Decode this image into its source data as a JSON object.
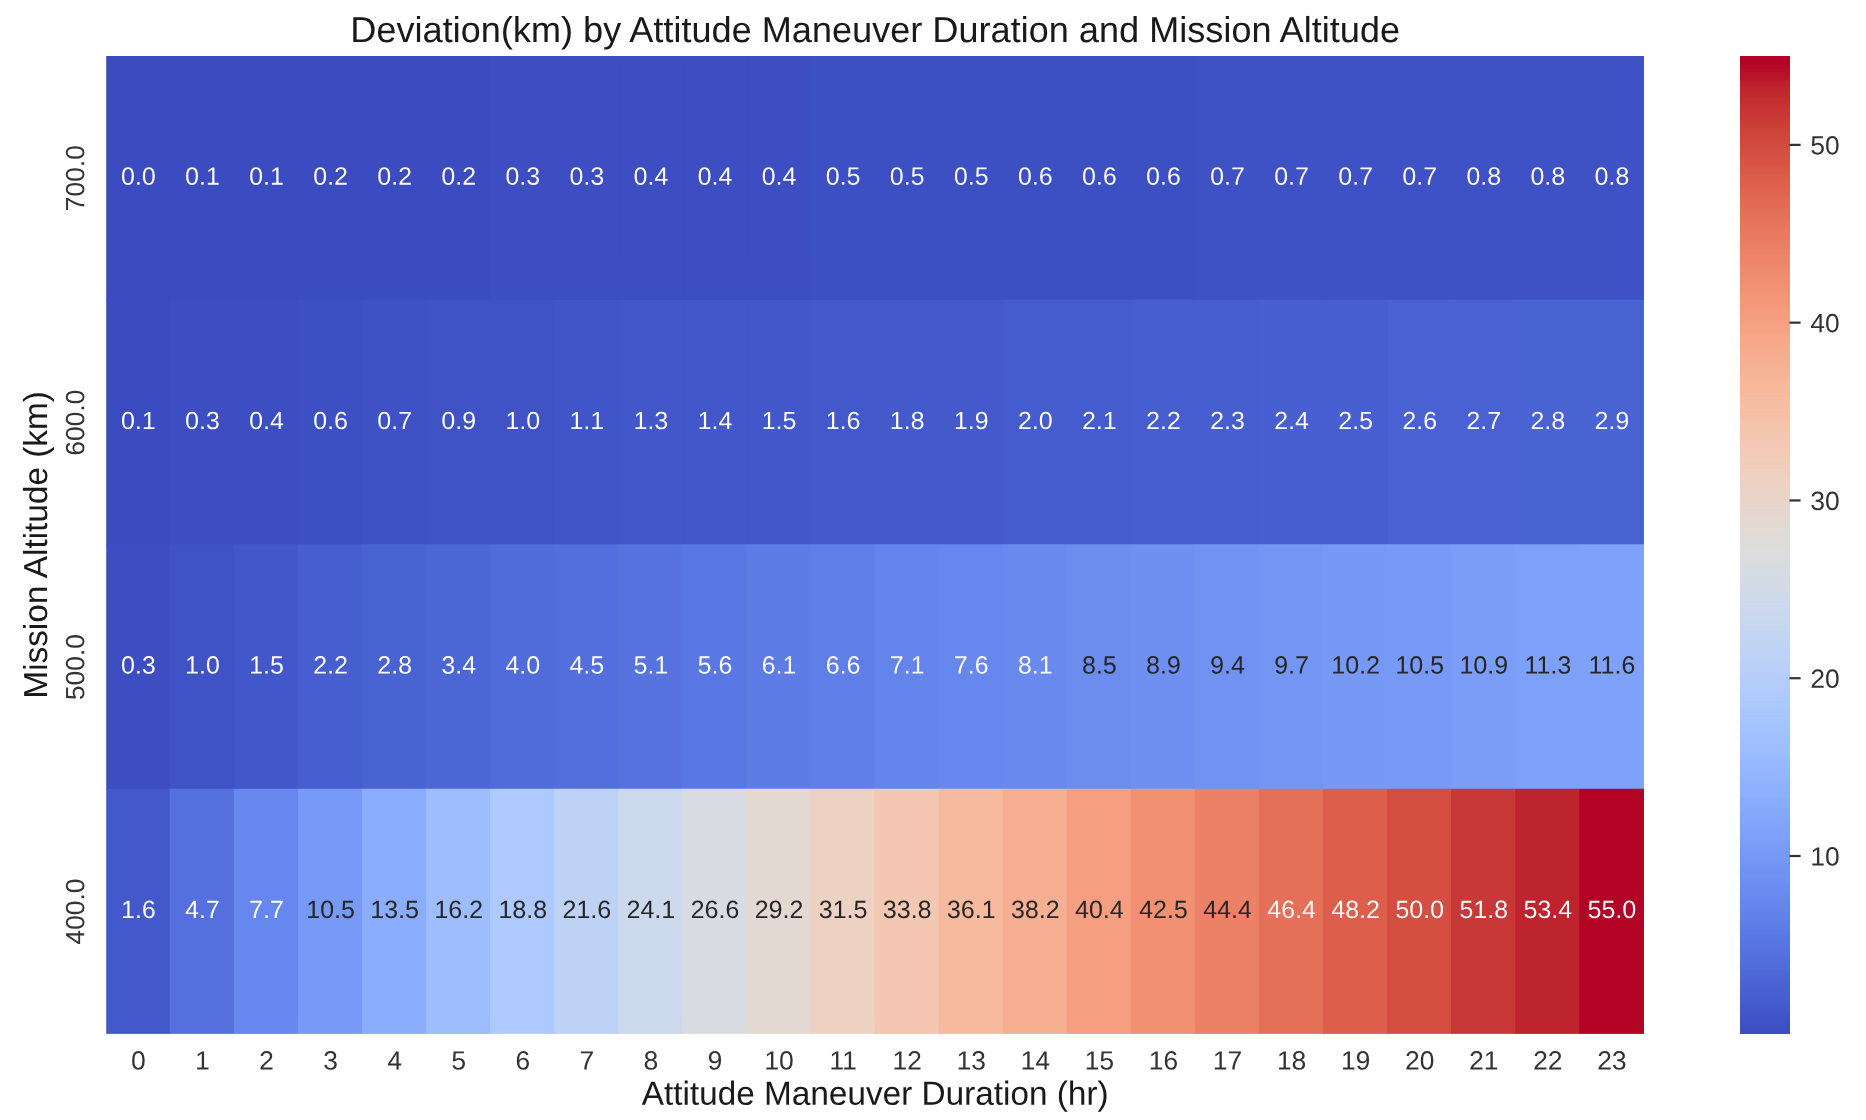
{
  "chart_data": {
    "type": "heatmap",
    "title": "Deviation(km) by Attitude Maneuver Duration and Mission Altitude",
    "xlabel": "Attitude Maneuver Duration (hr)",
    "ylabel": "Mission Altitude (km)",
    "categories": [
      "0",
      "1",
      "2",
      "3",
      "4",
      "5",
      "6",
      "7",
      "8",
      "9",
      "10",
      "11",
      "12",
      "13",
      "14",
      "15",
      "16",
      "17",
      "18",
      "19",
      "20",
      "21",
      "22",
      "23"
    ],
    "y_categories": [
      "700.0",
      "600.0",
      "500.0",
      "400.0"
    ],
    "cells": [
      [
        0.0,
        0.1,
        0.1,
        0.2,
        0.2,
        0.2,
        0.3,
        0.3,
        0.4,
        0.4,
        0.4,
        0.5,
        0.5,
        0.5,
        0.6,
        0.6,
        0.6,
        0.7,
        0.7,
        0.7,
        0.7,
        0.8,
        0.8,
        0.8
      ],
      [
        0.1,
        0.3,
        0.4,
        0.6,
        0.7,
        0.9,
        1.0,
        1.1,
        1.3,
        1.4,
        1.5,
        1.6,
        1.8,
        1.9,
        2.0,
        2.1,
        2.2,
        2.3,
        2.4,
        2.5,
        2.6,
        2.7,
        2.8,
        2.9
      ],
      [
        0.3,
        1.0,
        1.5,
        2.2,
        2.8,
        3.4,
        4.0,
        4.5,
        5.1,
        5.6,
        6.1,
        6.6,
        7.1,
        7.6,
        8.1,
        8.5,
        8.9,
        9.4,
        9.7,
        10.2,
        10.5,
        10.9,
        11.3,
        11.6
      ],
      [
        1.6,
        4.7,
        7.7,
        10.5,
        13.5,
        16.2,
        18.8,
        21.6,
        24.1,
        26.6,
        29.2,
        31.5,
        33.8,
        36.1,
        38.2,
        40.4,
        42.5,
        44.4,
        46.4,
        48.2,
        50.0,
        51.8,
        53.4,
        55.0
      ]
    ],
    "cell_labels": [
      [
        "0.0",
        "0.1",
        "0.1",
        "0.2",
        "0.2",
        "0.2",
        "0.3",
        "0.3",
        "0.4",
        "0.4",
        "0.4",
        "0.5",
        "0.5",
        "0.5",
        "0.6",
        "0.6",
        "0.6",
        "0.7",
        "0.7",
        "0.7",
        "0.7",
        "0.8",
        "0.8",
        "0.8"
      ],
      [
        "0.1",
        "0.3",
        "0.4",
        "0.6",
        "0.7",
        "0.9",
        "1.0",
        "1.1",
        "1.3",
        "1.4",
        "1.5",
        "1.6",
        "1.8",
        "1.9",
        "2.0",
        "2.1",
        "2.2",
        "2.3",
        "2.4",
        "2.5",
        "2.6",
        "2.7",
        "2.8",
        "2.9"
      ],
      [
        "0.3",
        "1.0",
        "1.5",
        "2.2",
        "2.8",
        "3.4",
        "4.0",
        "4.5",
        "5.1",
        "5.6",
        "6.1",
        "6.6",
        "7.1",
        "7.6",
        "8.1",
        "8.5",
        "8.9",
        "9.4",
        "9.7",
        "10.2",
        "10.5",
        "10.9",
        "11.3",
        "11.6"
      ],
      [
        "1.6",
        "4.7",
        "7.7",
        "10.5",
        "13.5",
        "16.2",
        "18.8",
        "21.6",
        "24.1",
        "26.6",
        "29.2",
        "31.5",
        "33.8",
        "36.1",
        "38.2",
        "40.4",
        "42.5",
        "44.4",
        "46.4",
        "48.2",
        "50.0",
        "51.8",
        "53.4",
        "55.0"
      ]
    ],
    "clim": [
      0.0,
      55.0
    ],
    "cticks": [
      10,
      20,
      30,
      40,
      50
    ],
    "grid": false
  }
}
